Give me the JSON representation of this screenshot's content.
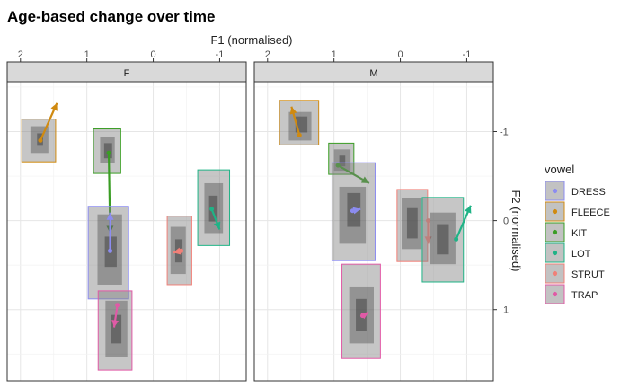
{
  "chart_data": {
    "type": "scatter",
    "title": "Age-based change over time",
    "xlabel": "F1 (normalised)",
    "ylabel": "F2 (normalised)",
    "x_axis": {
      "position": "top",
      "reversed": true,
      "range": [
        2.2,
        -1.4
      ],
      "ticks": [
        2,
        1,
        0,
        -1
      ],
      "tick_labels": [
        "2",
        "1",
        "0",
        "-1"
      ]
    },
    "y_axis": {
      "position": "right",
      "reversed": true,
      "range": [
        -1.56,
        1.8
      ],
      "ticks": [
        -1,
        0,
        1
      ],
      "tick_labels": [
        "-1",
        "0",
        "1"
      ]
    },
    "grid": true,
    "facets": [
      "F",
      "M"
    ],
    "legend": {
      "title": "vowel",
      "position": "right",
      "items": [
        {
          "name": "DRESS",
          "color": "#8c8cf0"
        },
        {
          "name": "FLEECE",
          "color": "#d08a10"
        },
        {
          "name": "KIT",
          "color": "#3a9d24"
        },
        {
          "name": "LOT",
          "color": "#1fb386"
        },
        {
          "name": "STRUT",
          "color": "#f08078"
        },
        {
          "name": "TRAP",
          "color": "#e05aa6"
        }
      ]
    },
    "series": [
      {
        "facet": "F",
        "vowel": "FLEECE",
        "start": [
          1.7,
          -0.9
        ],
        "end": [
          1.45,
          -1.32
        ],
        "box_outer": [
          [
            1.98,
            1.47
          ],
          [
            -1.14,
            -0.66
          ]
        ],
        "box_mid": [
          [
            1.85,
            1.58
          ],
          [
            -1.06,
            -0.76
          ]
        ],
        "box_inner": [
          [
            1.75,
            1.66
          ],
          [
            -0.98,
            -0.84
          ]
        ]
      },
      {
        "facet": "F",
        "vowel": "KIT",
        "start": [
          0.67,
          -0.76
        ],
        "end": [
          0.65,
          0.14
        ],
        "box_outer": [
          [
            0.9,
            0.49
          ],
          [
            -1.03,
            -0.53
          ]
        ],
        "box_mid": [
          [
            0.8,
            0.58
          ],
          [
            -0.94,
            -0.65
          ]
        ],
        "box_inner": [
          [
            0.74,
            0.62
          ],
          [
            -0.87,
            -0.7
          ]
        ]
      },
      {
        "facet": "F",
        "vowel": "DRESS",
        "start": [
          0.65,
          0.34
        ],
        "end": [
          0.65,
          -0.09
        ],
        "box_outer": [
          [
            0.98,
            0.37
          ],
          [
            -0.16,
            0.88
          ]
        ],
        "box_mid": [
          [
            0.84,
            0.47
          ],
          [
            -0.07,
            0.72
          ]
        ],
        "box_inner": [
          [
            0.73,
            0.55
          ],
          [
            0.18,
            0.52
          ]
        ]
      },
      {
        "facet": "F",
        "vowel": "TRAP",
        "start": [
          0.54,
          0.95
        ],
        "end": [
          0.59,
          1.2
        ],
        "box_outer": [
          [
            0.83,
            0.32
          ],
          [
            0.79,
            1.68
          ]
        ],
        "box_mid": [
          [
            0.72,
            0.39
          ],
          [
            0.9,
            1.53
          ]
        ],
        "box_inner": [
          [
            0.64,
            0.48
          ],
          [
            1.06,
            1.38
          ]
        ]
      },
      {
        "facet": "F",
        "vowel": "STRUT",
        "start": [
          -0.42,
          0.34
        ],
        "end": [
          -0.3,
          0.36
        ],
        "box_outer": [
          [
            -0.21,
            -0.58
          ],
          [
            -0.05,
            0.72
          ]
        ],
        "box_mid": [
          [
            -0.26,
            -0.49
          ],
          [
            0.07,
            0.6
          ]
        ],
        "box_inner": [
          [
            -0.33,
            -0.44
          ],
          [
            0.21,
            0.47
          ]
        ]
      },
      {
        "facet": "F",
        "vowel": "LOT",
        "start": [
          -0.88,
          -0.13
        ],
        "end": [
          -1.0,
          0.1
        ],
        "box_outer": [
          [
            -0.67,
            -1.15
          ],
          [
            -0.57,
            0.28
          ]
        ],
        "box_mid": [
          [
            -0.77,
            -1.05
          ],
          [
            -0.42,
            0.14
          ]
        ],
        "box_inner": [
          [
            -0.84,
            -0.97
          ],
          [
            -0.28,
            0.01
          ]
        ]
      },
      {
        "facet": "M",
        "vowel": "FLEECE",
        "start": [
          1.52,
          -0.96
        ],
        "end": [
          1.64,
          -1.28
        ],
        "box_outer": [
          [
            1.82,
            1.23
          ],
          [
            -1.35,
            -0.85
          ]
        ],
        "box_mid": [
          [
            1.68,
            1.34
          ],
          [
            -1.22,
            -0.9
          ]
        ],
        "box_inner": [
          [
            1.58,
            1.4
          ],
          [
            -1.17,
            -0.99
          ]
        ]
      },
      {
        "facet": "M",
        "vowel": "KIT",
        "start": [
          0.94,
          -0.62
        ],
        "end": [
          0.47,
          -0.42
        ],
        "box_outer": [
          [
            1.08,
            0.7
          ],
          [
            -0.87,
            -0.52
          ]
        ],
        "box_mid": [
          [
            1.0,
            0.75
          ],
          [
            -0.8,
            -0.56
          ]
        ],
        "box_inner": [
          [
            0.92,
            0.83
          ],
          [
            -0.73,
            -0.61
          ]
        ]
      },
      {
        "facet": "M",
        "vowel": "DRESS",
        "start": [
          0.72,
          -0.11
        ],
        "end": [
          0.6,
          -0.13
        ],
        "box_outer": [
          [
            1.03,
            0.38
          ],
          [
            -0.65,
            0.45
          ]
        ],
        "box_mid": [
          [
            0.92,
            0.52
          ],
          [
            -0.38,
            0.26
          ]
        ],
        "box_inner": [
          [
            0.8,
            0.6
          ],
          [
            -0.31,
            0.07
          ]
        ]
      },
      {
        "facet": "M",
        "vowel": "TRAP",
        "start": [
          0.57,
          1.07
        ],
        "end": [
          0.48,
          1.03
        ],
        "box_outer": [
          [
            0.88,
            0.3
          ],
          [
            0.49,
            1.55
          ]
        ],
        "box_mid": [
          [
            0.77,
            0.4
          ],
          [
            0.74,
            1.38
          ]
        ],
        "box_inner": [
          [
            0.67,
            0.51
          ],
          [
            0.88,
            1.24
          ]
        ]
      },
      {
        "facet": "M",
        "vowel": "STRUT",
        "start": [
          -0.42,
          0.0
        ],
        "end": [
          -0.42,
          0.26
        ],
        "box_outer": [
          [
            0.05,
            -0.41
          ],
          [
            -0.35,
            0.46
          ]
        ],
        "box_mid": [
          [
            -0.02,
            -0.32
          ],
          [
            -0.25,
            0.32
          ]
        ],
        "box_inner": [
          [
            -0.1,
            -0.26
          ],
          [
            -0.14,
            0.2
          ]
        ]
      },
      {
        "facet": "M",
        "vowel": "LOT",
        "start": [
          -0.84,
          0.21
        ],
        "end": [
          -1.06,
          -0.17
        ],
        "box_outer": [
          [
            -0.33,
            -0.95
          ],
          [
            -0.26,
            0.69
          ]
        ],
        "box_mid": [
          [
            -0.45,
            -0.83
          ],
          [
            -0.09,
            0.49
          ]
        ],
        "box_inner": [
          [
            -0.55,
            -0.73
          ],
          [
            0.04,
            0.38
          ]
        ]
      }
    ]
  }
}
